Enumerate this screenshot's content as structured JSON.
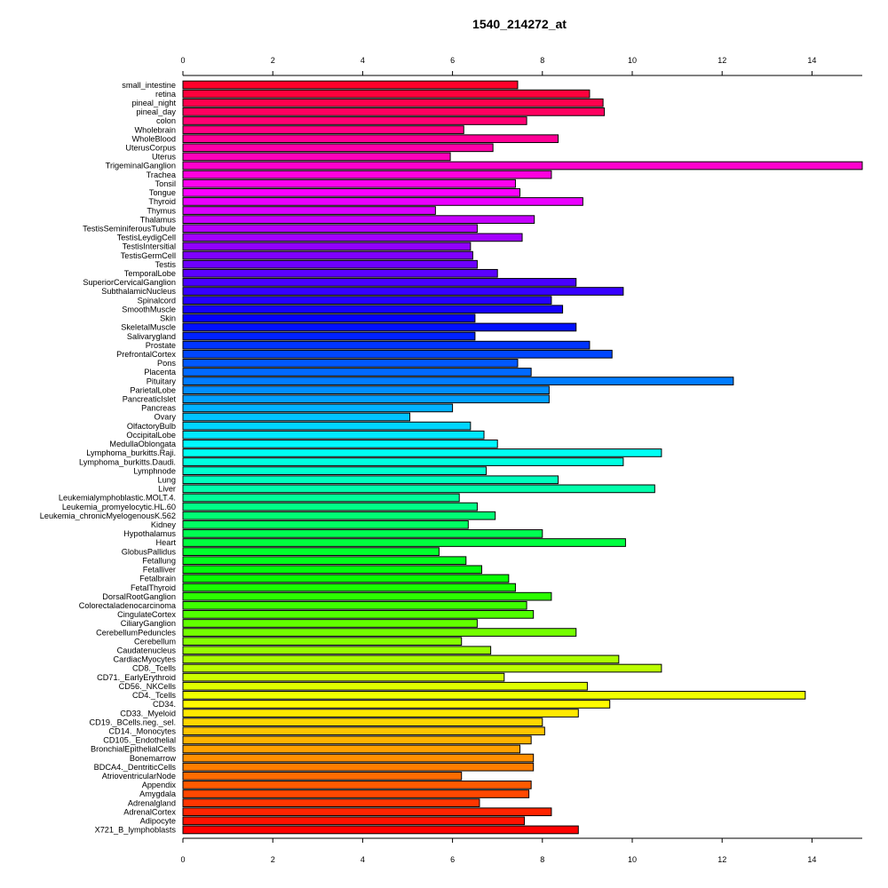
{
  "chart_data": {
    "type": "bar",
    "orientation": "horizontal",
    "title": "1540_214272_at",
    "xlabel": "",
    "ylabel": "",
    "xlim": [
      0,
      15
    ],
    "xticks": [
      "0",
      "2",
      "4",
      "6",
      "8",
      "10",
      "12",
      "14"
    ],
    "grid": false,
    "legend": "none",
    "categories": [
      "small_intestine",
      "retina",
      "pineal_night",
      "pineal_day",
      "colon",
      "Wholebrain",
      "WholeBlood",
      "UterusCorpus",
      "Uterus",
      "TrigeminalGanglion",
      "Trachea",
      "Tonsil",
      "Tongue",
      "Thyroid",
      "Thymus",
      "Thalamus",
      "TestisSeminiferousTubule",
      "TestisLeydigCell",
      "TestisIntersitial",
      "TestisGermCell",
      "Testis",
      "TemporalLobe",
      "SuperiorCervicalGanglion",
      "SubthalamicNucleus",
      "Spinalcord",
      "SmoothMuscle",
      "Skin",
      "SkeletalMuscle",
      "Salivarygland",
      "Prostate",
      "PrefrontalCortex",
      "Pons",
      "Placenta",
      "Pituitary",
      "ParietalLobe",
      "PancreaticIslet",
      "Pancreas",
      "Ovary",
      "OlfactoryBulb",
      "OccipitalLobe",
      "MedullaOblongata",
      "Lymphoma_burkitts.Raji.",
      "Lymphoma_burkitts.Daudi.",
      "Lymphnode",
      "Lung",
      "Liver",
      "Leukemialymphoblastic.MOLT.4.",
      "Leukemia_promyelocytic.HL.60",
      "Leukemia_chronicMyelogenousK.562",
      "Kidney",
      "Hypothalamus",
      "Heart",
      "GlobusPallidus",
      "Fetallung",
      "Fetalliver",
      "Fetalbrain",
      "FetalThyroid",
      "DorsalRootGanglion",
      "Colorectaladenocarcinoma",
      "CingulateCortex",
      "CiliaryGanglion",
      "CerebellumPeduncles",
      "Cerebellum",
      "Caudatenucleus",
      "CardiacMyocytes",
      "CD8._Tcells",
      "CD71._EarlyErythroid",
      "CD56._NKCells",
      "CD4._Tcells",
      "CD34.",
      "CD33._Myeloid",
      "CD19._BCells.neg._sel.",
      "CD14._Monocytes",
      "CD105._Endothelial",
      "BronchialEpithelialCells",
      "Bonemarrow",
      "BDCA4._DentriticCells",
      "AtrioventricularNode",
      "Appendix",
      "Amygdala",
      "Adrenalgland",
      "AdrenalCortex",
      "Adipocyte",
      "X721_B_lymphoblasts"
    ],
    "values": [
      7.45,
      9.05,
      9.35,
      9.38,
      7.65,
      6.25,
      8.35,
      6.9,
      5.95,
      15.15,
      8.2,
      7.4,
      7.5,
      8.9,
      5.62,
      7.82,
      6.55,
      7.55,
      6.4,
      6.45,
      6.55,
      7.0,
      8.75,
      9.8,
      8.2,
      8.45,
      6.5,
      8.75,
      6.5,
      9.05,
      9.55,
      7.45,
      7.75,
      12.25,
      8.15,
      8.15,
      6.0,
      5.05,
      6.4,
      6.7,
      7.0,
      10.65,
      9.8,
      6.75,
      8.35,
      10.5,
      6.15,
      6.55,
      6.95,
      6.35,
      8.0,
      9.85,
      5.7,
      6.3,
      6.65,
      7.25,
      7.4,
      8.2,
      7.65,
      7.8,
      6.55,
      8.75,
      6.2,
      6.85,
      9.7,
      10.65,
      7.15,
      9.0,
      13.85,
      9.5,
      8.8,
      8.0,
      8.05,
      7.75,
      7.5,
      7.8,
      7.8,
      6.2,
      7.75,
      7.7,
      6.6,
      8.2,
      7.6,
      8.8
    ]
  }
}
